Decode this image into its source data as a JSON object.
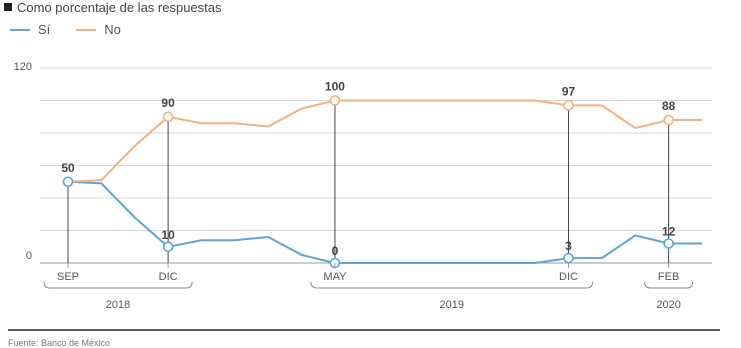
{
  "caption": "Como porcentaje de las respuestas",
  "source": "Fuente: Banco de México",
  "chart_data": {
    "type": "line",
    "ylim": [
      0,
      120
    ],
    "yticks": [
      0,
      120
    ],
    "x": [
      0,
      1,
      2,
      3,
      4,
      5,
      6,
      7,
      8,
      9,
      10,
      11,
      12,
      13,
      14,
      15,
      16,
      17,
      18,
      19
    ],
    "series": [
      {
        "name": "Sí",
        "color": "#5aa7d6",
        "values": [
          50,
          49,
          28,
          10,
          14,
          14,
          16,
          5,
          0,
          0,
          0,
          0,
          0,
          0,
          0,
          3,
          3,
          17,
          12,
          12
        ]
      },
      {
        "name": "No",
        "color": "#f2b27e",
        "values": [
          50,
          51,
          72,
          90,
          86,
          86,
          84,
          95,
          100,
          100,
          100,
          100,
          100,
          100,
          100,
          97,
          97,
          83,
          88,
          88
        ]
      }
    ],
    "markers": [
      {
        "xi": 0,
        "month": "SEP",
        "label": "50",
        "si": 50,
        "no": 50
      },
      {
        "xi": 3,
        "month": "DIC",
        "label_top": "90",
        "label_bot": "10",
        "si": 10,
        "no": 90
      },
      {
        "xi": 8,
        "month": "MAY",
        "label_top": "100",
        "label_bot": "0",
        "si": 0,
        "no": 100
      },
      {
        "xi": 15,
        "month": "DIC",
        "label_top": "97",
        "label_bot": "3",
        "si": 3,
        "no": 97
      },
      {
        "xi": 18,
        "month": "FEB",
        "label_top": "88",
        "label_bot": "12",
        "si": 12,
        "no": 88
      }
    ],
    "years": [
      {
        "label": "2018",
        "from": 0,
        "to": 3
      },
      {
        "label": "2019",
        "from": 8,
        "to": 15
      },
      {
        "label": "2020",
        "from": 18,
        "to": 18
      }
    ]
  }
}
